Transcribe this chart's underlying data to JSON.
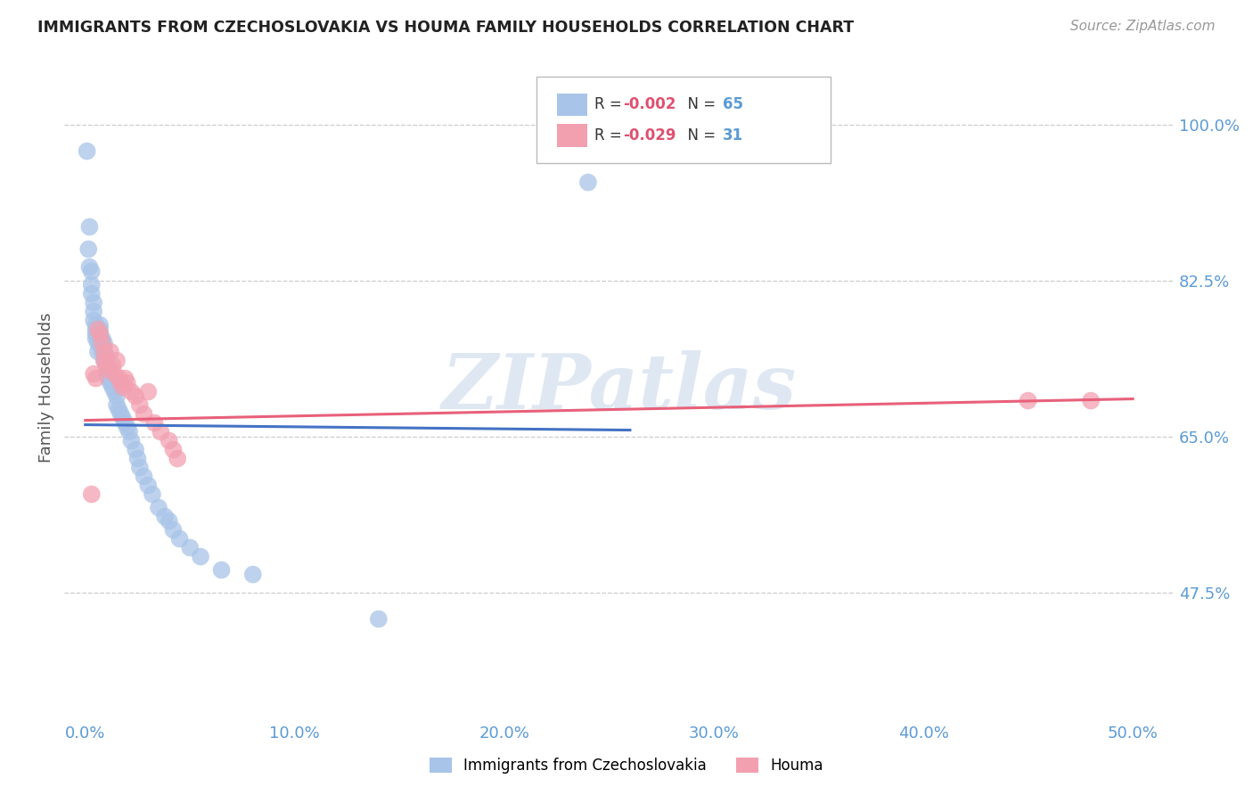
{
  "title": "IMMIGRANTS FROM CZECHOSLOVAKIA VS HOUMA FAMILY HOUSEHOLDS CORRELATION CHART",
  "source": "Source: ZipAtlas.com",
  "ylabel": "Family Households",
  "xaxis_ticks": [
    "0.0%",
    "10.0%",
    "20.0%",
    "30.0%",
    "40.0%",
    "50.0%"
  ],
  "xaxis_values": [
    0.0,
    0.1,
    0.2,
    0.3,
    0.4,
    0.5
  ],
  "yaxis_ticks": [
    "100.0%",
    "82.5%",
    "65.0%",
    "47.5%"
  ],
  "yaxis_values": [
    1.0,
    0.825,
    0.65,
    0.475
  ],
  "xlim": [
    -0.01,
    0.52
  ],
  "ylim": [
    0.33,
    1.08
  ],
  "blue_color": "#A8C4E8",
  "pink_color": "#F2A0B0",
  "line_blue": "#4472C4",
  "line_pink": "#E8607A",
  "watermark": "ZIPatlas",
  "grid_color": "#CCCCCC",
  "axis_label_color": "#5B9BD5",
  "title_color": "#222222",
  "source_color": "#999999",
  "blue_scatter_x": [
    0.0008,
    0.0015,
    0.002,
    0.002,
    0.003,
    0.003,
    0.003,
    0.004,
    0.004,
    0.004,
    0.005,
    0.005,
    0.005,
    0.005,
    0.006,
    0.006,
    0.006,
    0.007,
    0.007,
    0.007,
    0.007,
    0.008,
    0.008,
    0.008,
    0.009,
    0.009,
    0.009,
    0.009,
    0.01,
    0.01,
    0.01,
    0.01,
    0.011,
    0.011,
    0.012,
    0.012,
    0.013,
    0.013,
    0.014,
    0.015,
    0.015,
    0.016,
    0.017,
    0.018,
    0.019,
    0.02,
    0.021,
    0.022,
    0.024,
    0.025,
    0.026,
    0.028,
    0.03,
    0.032,
    0.035,
    0.038,
    0.04,
    0.042,
    0.045,
    0.05,
    0.055,
    0.065,
    0.08,
    0.14,
    0.24
  ],
  "blue_scatter_y": [
    0.97,
    0.86,
    0.885,
    0.84,
    0.835,
    0.82,
    0.81,
    0.8,
    0.79,
    0.78,
    0.775,
    0.77,
    0.765,
    0.76,
    0.77,
    0.755,
    0.745,
    0.775,
    0.77,
    0.765,
    0.755,
    0.76,
    0.755,
    0.745,
    0.755,
    0.75,
    0.74,
    0.735,
    0.74,
    0.735,
    0.73,
    0.72,
    0.72,
    0.715,
    0.715,
    0.71,
    0.71,
    0.705,
    0.7,
    0.695,
    0.685,
    0.68,
    0.675,
    0.67,
    0.665,
    0.66,
    0.655,
    0.645,
    0.635,
    0.625,
    0.615,
    0.605,
    0.595,
    0.585,
    0.57,
    0.56,
    0.555,
    0.545,
    0.535,
    0.525,
    0.515,
    0.5,
    0.495,
    0.445,
    0.935
  ],
  "pink_scatter_x": [
    0.003,
    0.004,
    0.005,
    0.006,
    0.007,
    0.008,
    0.009,
    0.009,
    0.01,
    0.011,
    0.012,
    0.013,
    0.014,
    0.015,
    0.016,
    0.017,
    0.018,
    0.019,
    0.02,
    0.022,
    0.024,
    0.026,
    0.028,
    0.03,
    0.033,
    0.036,
    0.04,
    0.042,
    0.044,
    0.45,
    0.48
  ],
  "pink_scatter_y": [
    0.585,
    0.72,
    0.715,
    0.77,
    0.765,
    0.755,
    0.745,
    0.735,
    0.73,
    0.725,
    0.745,
    0.73,
    0.72,
    0.735,
    0.715,
    0.71,
    0.705,
    0.715,
    0.71,
    0.7,
    0.695,
    0.685,
    0.675,
    0.7,
    0.665,
    0.655,
    0.645,
    0.635,
    0.625,
    0.69,
    0.69
  ],
  "blue_line_x": [
    0.0,
    0.26
  ],
  "blue_line_y": [
    0.663,
    0.657
  ],
  "pink_line_x": [
    0.0,
    0.5
  ],
  "pink_line_y": [
    0.668,
    0.692
  ]
}
